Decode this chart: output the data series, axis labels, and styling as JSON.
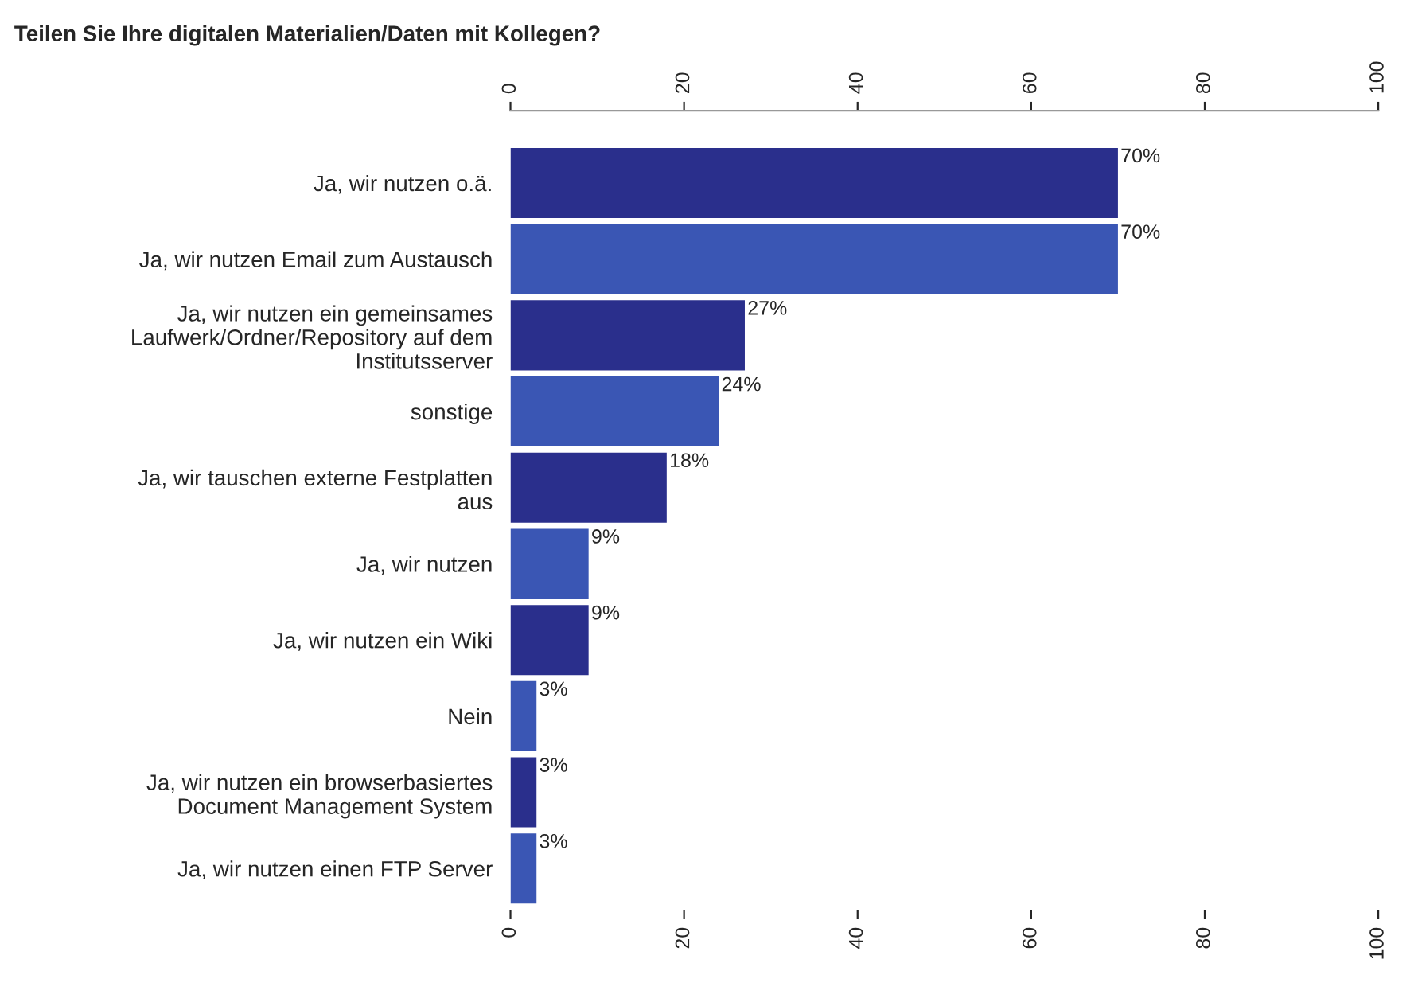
{
  "chart_data": {
    "type": "bar",
    "orientation": "horizontal",
    "title": "Teilen Sie Ihre digitalen Materialien/Daten mit Kollegen?",
    "categories": [
      "Ja, wir nutzen o.ä.",
      "Ja, wir nutzen Email zum Austausch",
      "Ja, wir nutzen ein gemeinsames\nLaufwerk/Ordner/Repository auf dem\nInstitutsserver",
      "sonstige",
      "Ja, wir tauschen externe Festplatten\naus",
      "Ja, wir nutzen",
      "Ja, wir nutzen ein Wiki",
      "Nein",
      "Ja, wir nutzen ein browserbasiertes\nDocument Management System",
      "Ja, wir nutzen einen FTP Server"
    ],
    "values": [
      70,
      70,
      27,
      24,
      18,
      9,
      9,
      3,
      3,
      3
    ],
    "value_labels": [
      "70%",
      "70%",
      "27%",
      "24%",
      "18%",
      "9%",
      "9%",
      "3%",
      "3%",
      "3%"
    ],
    "colors": [
      "#2a2f8c",
      "#3a56b4",
      "#2a2f8c",
      "#3a56b4",
      "#2a2f8c",
      "#3a56b4",
      "#2a2f8c",
      "#3a56b4",
      "#2a2f8c",
      "#3a56b4"
    ],
    "xlim": [
      0,
      100
    ],
    "xticks": [
      0,
      20,
      40,
      60,
      80,
      100
    ],
    "x2lim": [
      0,
      100
    ],
    "x2ticks": [
      0,
      20,
      40,
      60,
      80,
      100
    ],
    "grid": false,
    "legend": false
  }
}
